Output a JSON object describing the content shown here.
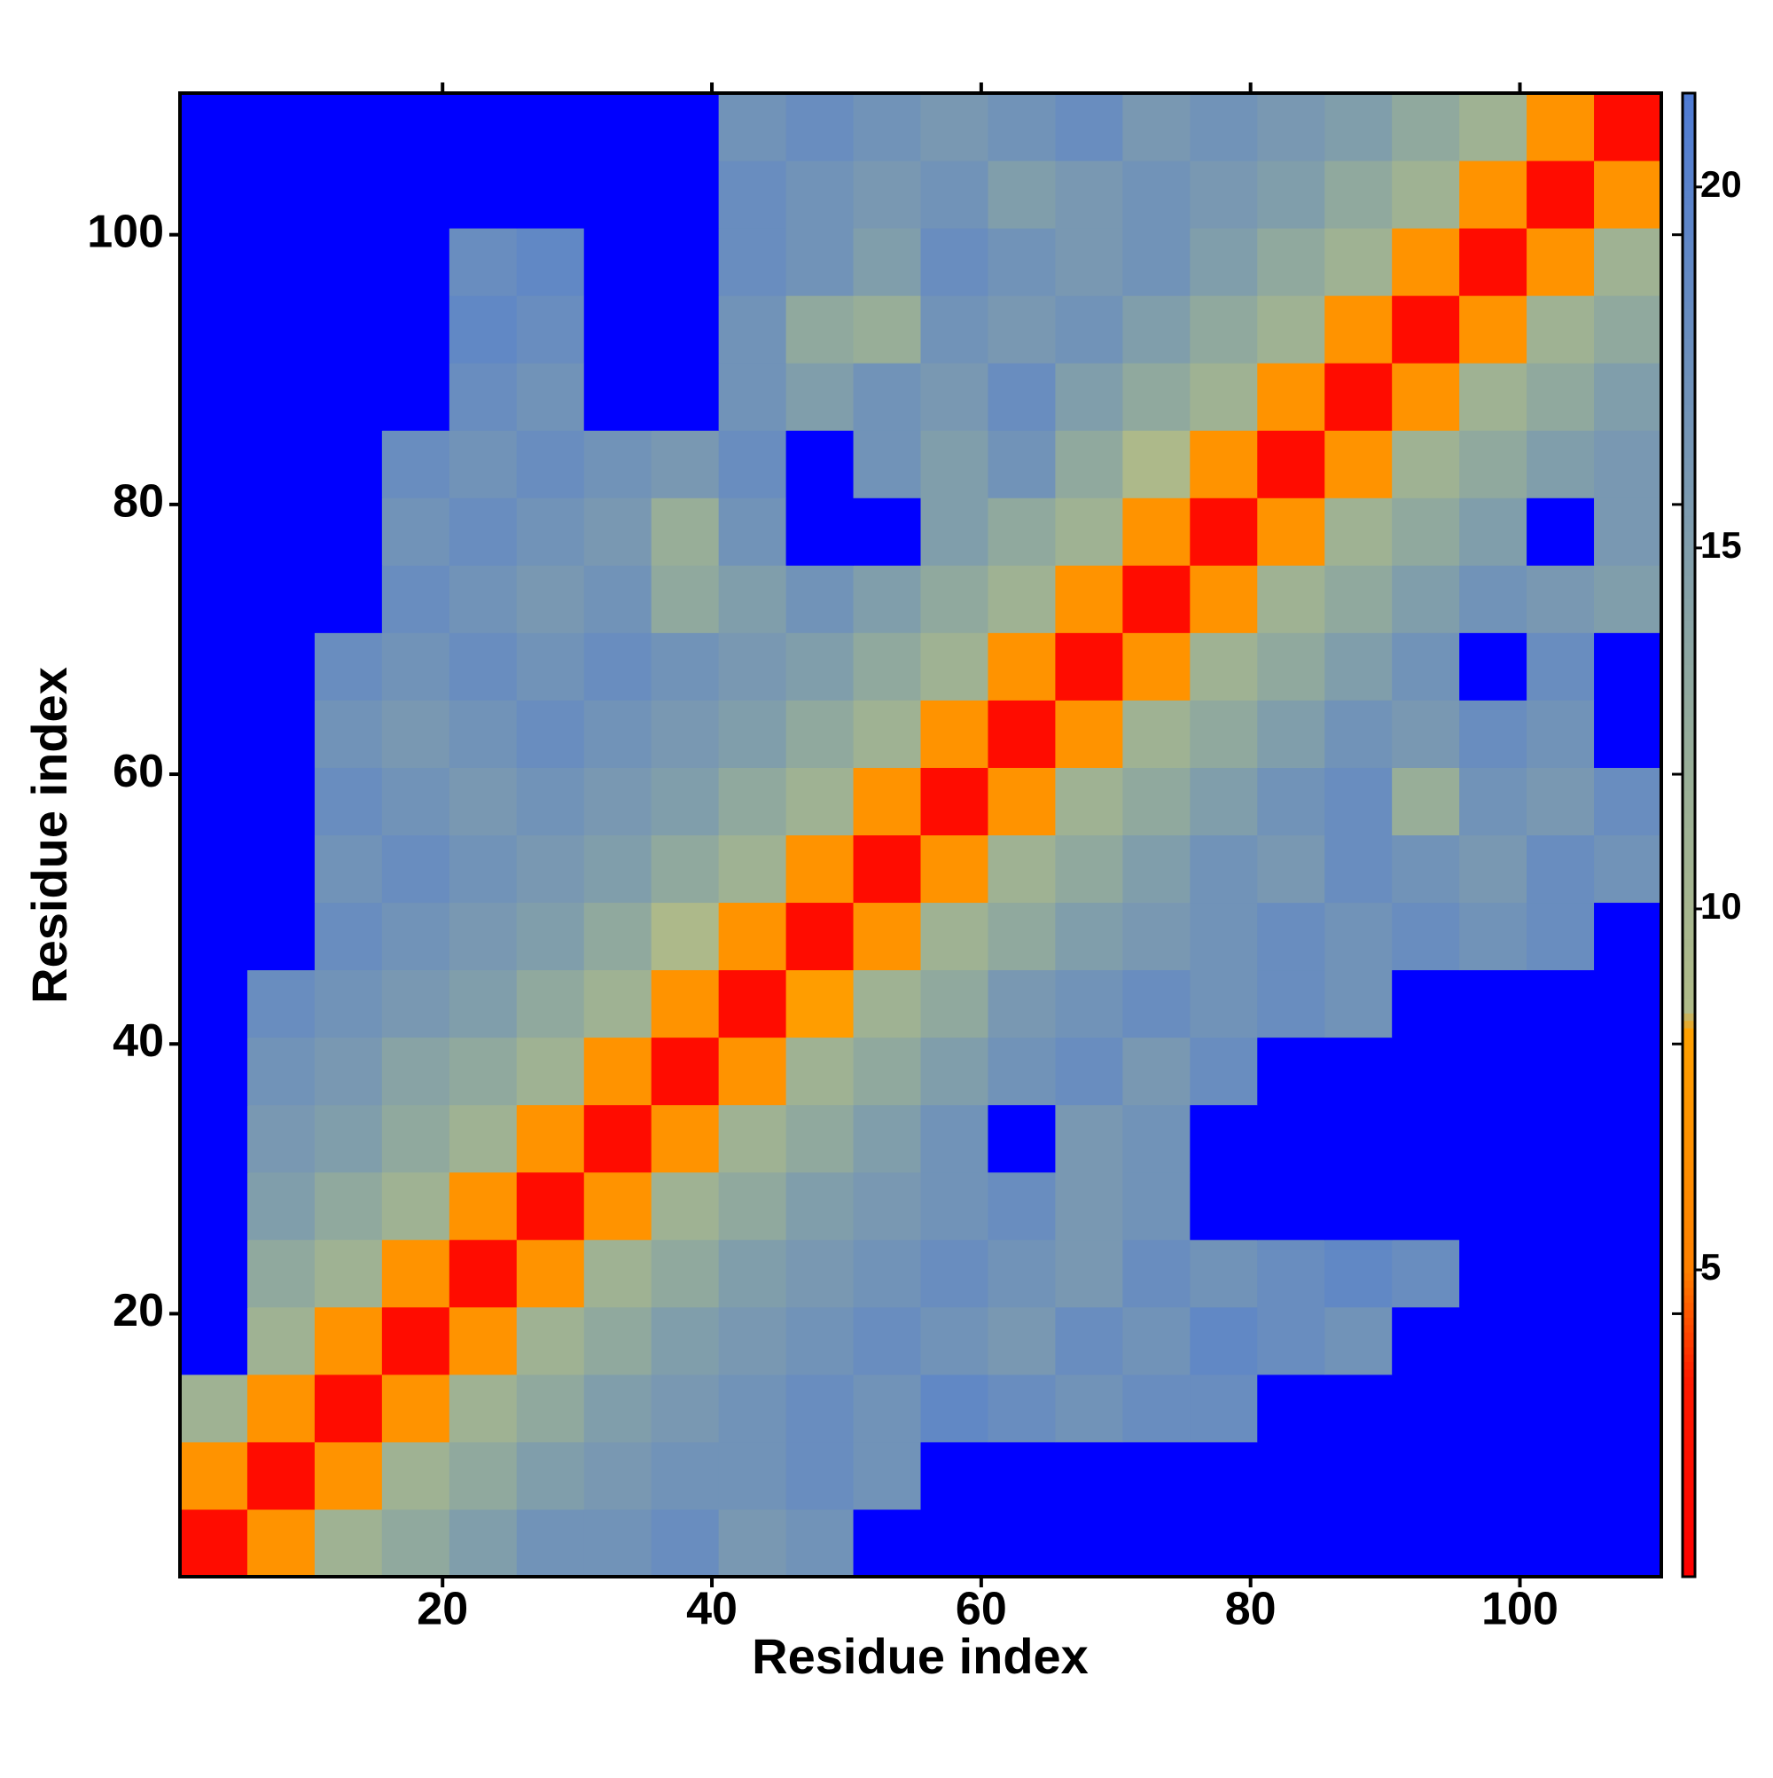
{
  "chart_data": {
    "type": "heatmap",
    "x_label": "Residue index",
    "y_label": "Residue index",
    "x_edges": [
      0.5,
      5.5,
      10.5,
      15.5,
      20.5,
      25.5,
      30.5,
      35.5,
      40.5,
      45.5,
      50.5,
      55.5,
      60.5,
      65.5,
      70.5,
      75.5,
      80.5,
      85.5,
      90.5,
      95.5,
      100.5,
      105.5,
      110.5
    ],
    "y_edges": [
      0.5,
      5.5,
      10.5,
      15.5,
      20.5,
      25.5,
      30.5,
      35.5,
      40.5,
      45.5,
      50.5,
      55.5,
      60.5,
      65.5,
      70.5,
      75.5,
      80.5,
      85.5,
      90.5,
      95.5,
      100.5,
      105.5,
      110.5
    ],
    "z": [
      [
        2,
        7,
        11,
        13,
        15,
        17,
        17,
        18,
        16,
        17,
        22,
        22,
        22,
        22,
        22,
        22,
        22,
        22,
        22,
        22,
        22,
        22
      ],
      [
        7,
        2,
        7,
        11,
        13,
        15,
        16,
        17,
        17,
        18,
        17,
        22,
        22,
        22,
        22,
        22,
        22,
        22,
        22,
        22,
        22,
        22
      ],
      [
        11,
        7,
        2,
        7,
        11,
        13,
        15,
        16,
        17,
        18,
        17,
        19,
        18,
        17,
        18,
        18,
        22,
        22,
        22,
        22,
        22,
        22
      ],
      [
        22,
        11,
        7,
        2,
        7,
        11,
        13,
        15,
        16,
        17,
        18,
        17,
        16,
        18,
        17,
        19,
        18,
        17,
        22,
        22,
        22,
        22
      ],
      [
        22,
        13,
        11,
        7,
        2,
        7,
        11,
        13,
        15,
        16,
        17,
        18,
        17,
        16,
        18,
        17,
        18,
        19,
        18,
        22,
        22,
        22
      ],
      [
        22,
        15,
        13,
        11,
        7,
        2,
        7,
        11,
        13,
        15,
        16,
        17,
        18,
        16,
        17,
        22,
        22,
        22,
        22,
        22,
        22,
        22
      ],
      [
        22,
        16,
        15,
        13,
        11,
        7,
        2,
        7,
        11,
        13,
        15,
        17,
        22,
        16,
        17,
        22,
        22,
        22,
        22,
        22,
        22,
        22
      ],
      [
        22,
        17,
        16,
        14,
        13,
        11,
        7,
        2,
        7,
        11,
        13,
        15,
        17,
        18,
        16,
        18,
        22,
        22,
        22,
        22,
        22,
        22
      ],
      [
        22,
        18,
        17,
        16,
        15,
        13,
        11,
        7,
        2,
        8,
        11,
        13,
        16,
        17,
        18,
        17,
        18,
        17,
        22,
        22,
        22,
        22
      ],
      [
        22,
        22,
        18,
        17,
        16,
        15,
        13,
        9,
        7,
        2,
        7,
        11,
        13,
        15,
        16,
        17,
        18,
        17,
        18,
        17,
        18,
        22
      ],
      [
        22,
        22,
        17,
        18,
        17,
        16,
        15,
        13,
        11,
        7,
        2,
        7,
        11,
        13,
        15,
        17,
        16,
        18,
        17,
        16,
        18,
        17
      ],
      [
        22,
        22,
        18,
        17,
        16,
        17,
        16,
        15,
        13,
        11,
        7,
        2,
        7,
        11,
        13,
        15,
        17,
        18,
        12,
        17,
        16,
        18
      ],
      [
        22,
        22,
        17,
        16,
        17,
        18,
        17,
        16,
        15,
        13,
        11,
        7,
        2,
        7,
        11,
        13,
        15,
        17,
        16,
        18,
        17,
        22
      ],
      [
        22,
        22,
        18,
        17,
        18,
        17,
        18,
        17,
        16,
        15,
        13,
        11,
        7,
        2,
        7,
        11,
        13,
        15,
        17,
        22,
        18,
        22
      ],
      [
        22,
        22,
        22,
        18,
        17,
        16,
        17,
        13,
        15,
        17,
        15,
        13,
        11,
        7,
        2,
        7,
        11,
        13,
        15,
        17,
        16,
        15
      ],
      [
        22,
        22,
        22,
        17,
        18,
        17,
        16,
        12,
        17,
        22,
        22,
        15,
        13,
        11,
        7,
        2,
        7,
        11,
        13,
        15,
        22,
        16
      ],
      [
        22,
        22,
        22,
        18,
        17,
        18,
        17,
        16,
        18,
        22,
        17,
        15,
        17,
        13,
        9,
        7,
        2,
        7,
        11,
        13,
        15,
        16
      ],
      [
        22,
        22,
        22,
        22,
        18,
        17,
        22,
        22,
        17,
        15,
        17,
        16,
        18,
        15,
        13,
        11,
        7,
        2,
        7,
        11,
        13,
        15
      ],
      [
        22,
        22,
        22,
        22,
        19,
        18,
        22,
        22,
        17,
        13,
        12,
        17,
        16,
        17,
        15,
        13,
        11,
        7,
        2,
        7,
        11,
        13
      ],
      [
        22,
        22,
        22,
        22,
        18,
        19,
        22,
        22,
        18,
        17,
        15,
        18,
        17,
        16,
        17,
        15,
        13,
        11,
        7,
        2,
        7,
        11
      ],
      [
        22,
        22,
        22,
        22,
        22,
        22,
        22,
        22,
        18,
        17,
        16,
        17,
        15,
        16,
        17,
        16,
        15,
        13,
        11,
        7,
        2,
        7
      ],
      [
        22,
        22,
        22,
        22,
        22,
        22,
        22,
        22,
        17,
        18,
        17,
        16,
        17,
        18,
        16,
        17,
        16,
        15,
        13,
        11,
        7,
        2
      ]
    ],
    "xlim": [
      0.5,
      110.5
    ],
    "ylim": [
      0.5,
      110.5
    ],
    "xticks": [
      20,
      40,
      60,
      80,
      100
    ],
    "yticks": [
      20,
      40,
      60,
      80,
      100
    ],
    "zlim": [
      0.75,
      21.3
    ],
    "zticks": [
      5,
      10,
      15,
      20
    ],
    "colorscale": [
      [
        0.75,
        "#ff0000"
      ],
      [
        3.5,
        "#ff1a00"
      ],
      [
        5,
        "#ff8000"
      ],
      [
        8.3,
        "#ffa000"
      ],
      [
        8.6,
        "#b0bb88"
      ],
      [
        12,
        "#98ae98"
      ],
      [
        21.3,
        "#4f7bd4"
      ]
    ],
    "over_color": "#0000ff"
  }
}
